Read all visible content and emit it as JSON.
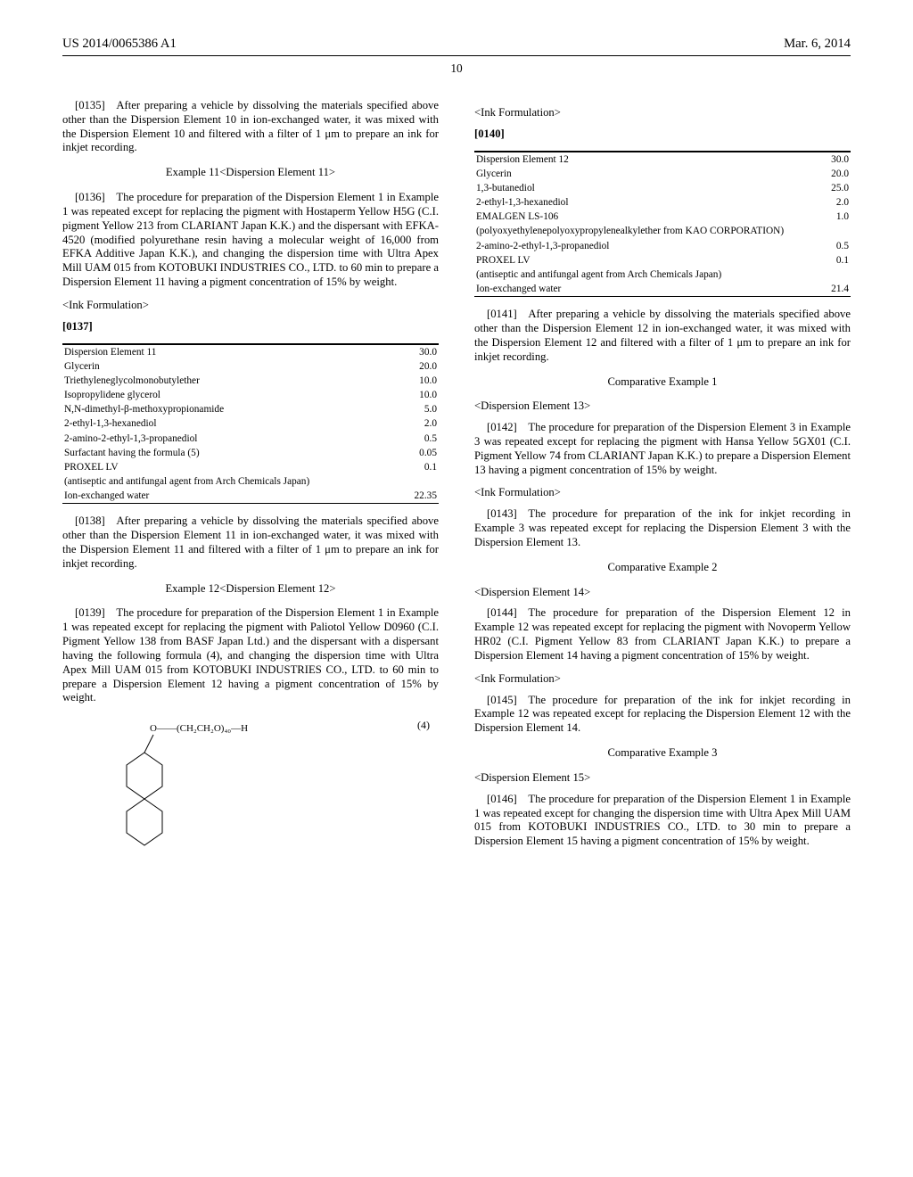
{
  "header": {
    "pub_number": "US 2014/0065386 A1",
    "date": "Mar. 6, 2014"
  },
  "page_number": "10",
  "left": {
    "p0135": "[0135] After preparing a vehicle by dissolving the materials specified above other than the Dispersion Element 10 in ion-exchanged water, it was mixed with the Dispersion Element 10 and filtered with a filter of 1 μm to prepare an ink for inkjet recording.",
    "ex11_title": "Example 11<Dispersion Element 11>",
    "p0136": "[0136] The procedure for preparation of the Dispersion Element 1 in Example 1 was repeated except for replacing the pigment with Hostaperm Yellow H5G (C.I. pigment Yellow 213 from CLARIANT Japan K.K.) and the dispersant with EFKA-4520 (modified polyurethane resin having a molecular weight of 16,000 from EFKA Additive Japan K.K.), and changing the dispersion time with Ultra Apex Mill UAM 015 from KOTOBUKI INDUSTRIES CO., LTD. to 60 min to prepare a Dispersion Element 11 having a pigment concentration of 15% by weight.",
    "ink_form_label": "<Ink Formulation>",
    "p0137": "[0137]",
    "table11_rows": [
      [
        "Dispersion Element 11",
        "30.0"
      ],
      [
        "Glycerin",
        "20.0"
      ],
      [
        "Triethyleneglycolmonobutylether",
        "10.0"
      ],
      [
        "Isopropylidene glycerol",
        "10.0"
      ],
      [
        "N,N-dimethyl-β-methoxypropionamide",
        "5.0"
      ],
      [
        "2-ethyl-1,3-hexanediol",
        "2.0"
      ],
      [
        "2-amino-2-ethyl-1,3-propanediol",
        "0.5"
      ],
      [
        "Surfactant having the formula (5)",
        "0.05"
      ],
      [
        "PROXEL LV",
        "0.1"
      ],
      [
        "(antiseptic and antifungal agent from Arch Chemicals Japan)",
        ""
      ],
      [
        "Ion-exchanged water",
        "22.35"
      ]
    ],
    "p0138": "[0138] After preparing a vehicle by dissolving the materials specified above other than the Dispersion Element 11 in ion-exchanged water, it was mixed with the Dispersion Element 11 and filtered with a filter of 1 μm to prepare an ink for inkjet recording.",
    "ex12_title": "Example 12<Dispersion Element 12>",
    "p0139": "[0139] The procedure for preparation of the Dispersion Element 1 in Example 1 was repeated except for replacing the pigment with Paliotol Yellow D0960 (C.I. Pigment Yellow 138 from BASF Japan Ltd.) and the dispersant with a dispersant having the following formula (4), and changing the dispersion time with Ultra Apex Mill UAM 015 from KOTOBUKI INDUSTRIES CO., LTD. to 60 min to prepare a Dispersion Element 12 having a pigment concentration of 15% by weight.",
    "formula_label": "(4)",
    "formula_text": "O——(CH₂CH₂O)₄₀—H"
  },
  "right": {
    "ink_form_label": "<Ink Formulation>",
    "p0140": "[0140]",
    "table12_rows": [
      [
        "Dispersion Element 12",
        "30.0"
      ],
      [
        "Glycerin",
        "20.0"
      ],
      [
        "1,3-butanediol",
        "25.0"
      ],
      [
        "2-ethyl-1,3-hexanediol",
        "2.0"
      ],
      [
        "EMALGEN LS-106",
        "1.0"
      ],
      [
        "(polyoxyethylenepolyoxypropylenealkylether from KAO CORPORATION)",
        ""
      ],
      [
        "2-amino-2-ethyl-1,3-propanediol",
        "0.5"
      ],
      [
        "PROXEL LV",
        "0.1"
      ],
      [
        "(antiseptic and antifungal agent from Arch Chemicals Japan)",
        ""
      ],
      [
        "Ion-exchanged water",
        "21.4"
      ]
    ],
    "p0141": "[0141] After preparing a vehicle by dissolving the materials specified above other than the Dispersion Element 12 in ion-exchanged water, it was mixed with the Dispersion Element 12 and filtered with a filter of 1 μm to prepare an ink for inkjet recording.",
    "ce1_title": "Comparative Example 1",
    "de13_title": "<Dispersion Element 13>",
    "p0142": "[0142] The procedure for preparation of the Dispersion Element 3 in Example 3 was repeated except for replacing the pigment with Hansa Yellow 5GX01 (C.I. Pigment Yellow 74 from CLARIANT Japan K.K.) to prepare a Dispersion Element 13 having a pigment concentration of 15% by weight.",
    "ink_form_label2": "<Ink Formulation>",
    "p0143": "[0143] The procedure for preparation of the ink for inkjet recording in Example 3 was repeated except for replacing the Dispersion Element 3 with the Dispersion Element 13.",
    "ce2_title": "Comparative Example 2",
    "de14_title": "<Dispersion Element 14>",
    "p0144": "[0144] The procedure for preparation of the Dispersion Element 12 in Example 12 was repeated except for replacing the pigment with Novoperm Yellow HR02 (C.I. Pigment Yellow 83 from CLARIANT Japan K.K.) to prepare a Dispersion Element 14 having a pigment concentration of 15% by weight.",
    "ink_form_label3": "<Ink Formulation>",
    "p0145": "[0145] The procedure for preparation of the ink for inkjet recording in Example 12 was repeated except for replacing the Dispersion Element 12 with the Dispersion Element 14.",
    "ce3_title": "Comparative Example 3",
    "de15_title": "<Dispersion Element 15>",
    "p0146": "[0146] The procedure for preparation of the Dispersion Element 1 in Example 1 was repeated except for changing the dispersion time with Ultra Apex Mill UAM 015 from KOTOBUKI INDUSTRIES CO., LTD. to 30 min to prepare a Dispersion Element 15 having a pigment concentration of 15% by weight."
  }
}
